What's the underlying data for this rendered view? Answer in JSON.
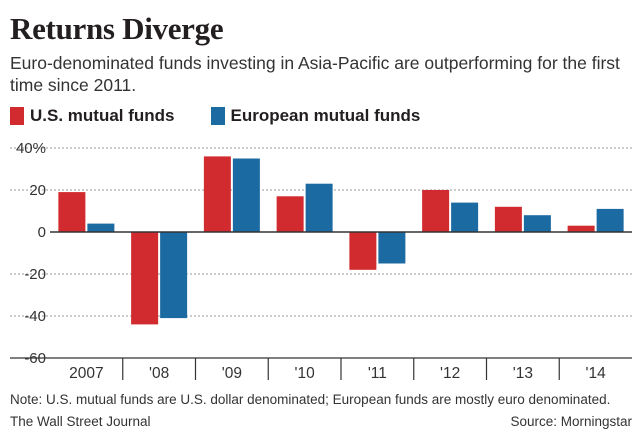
{
  "header": {
    "title": "Returns Diverge",
    "subtitle": "Euro-denominated funds investing in Asia-Pacific are outperforming for the first time since 2011."
  },
  "legend": {
    "us_label": "U.S. mutual funds",
    "eu_label": "European mutual funds"
  },
  "footer": {
    "note": "Note: U.S. mutual funds are U.S. dollar denominated; European funds are mostly euro denominated.",
    "credit": "The Wall Street Journal",
    "source": "Source: Morningstar"
  },
  "colors": {
    "us": "#d12b2f",
    "eu": "#1c6aa2",
    "grid": "#9a9a9a",
    "axis": "#333333"
  },
  "chart_data": {
    "type": "bar",
    "title": "Returns Diverge",
    "xlabel": "",
    "ylabel": "",
    "ylim": [
      -60,
      40
    ],
    "yticks": [
      40,
      20,
      0,
      -20,
      -40,
      -60
    ],
    "ytick_labels": [
      "40%",
      "20",
      "0",
      "-20",
      "-40",
      "-60"
    ],
    "grid": true,
    "categories": [
      "2007",
      "'08",
      "'09",
      "'10",
      "'11",
      "'12",
      "'13",
      "'14"
    ],
    "series": [
      {
        "name": "U.S. mutual funds",
        "values": [
          19,
          -44,
          36,
          17,
          -18,
          20,
          12,
          3
        ]
      },
      {
        "name": "European mutual funds",
        "values": [
          4,
          -41,
          35,
          23,
          -15,
          14,
          8,
          11
        ]
      }
    ]
  }
}
